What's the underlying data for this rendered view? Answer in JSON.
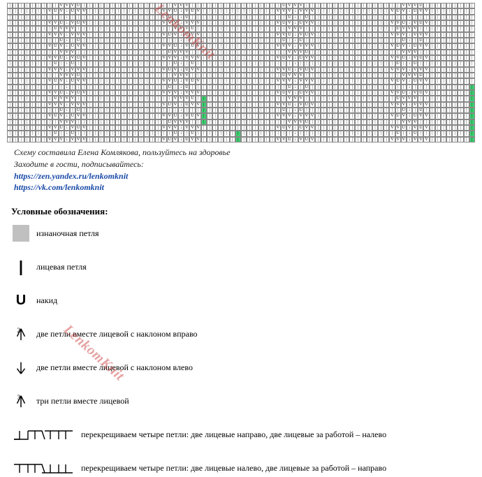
{
  "chart": {
    "rows": 24,
    "cols": 82,
    "symbols": {
      "knit": "|",
      "yo": "U",
      "k2tog_r": "V",
      "k2tog_l": "↓",
      "k3tog": "V",
      "cable_r": "⌐",
      "cable_l": "¬"
    },
    "background_color": "#ffffff",
    "grid_color": "#888888",
    "highlight_color": "#3cd070",
    "cell_font_size": 6,
    "highlight_cells": [
      {
        "row": 16,
        "col": 34,
        "span": 1
      },
      {
        "row": 17,
        "col": 34,
        "span": 1
      },
      {
        "row": 18,
        "col": 34,
        "span": 1
      },
      {
        "row": 19,
        "col": 34,
        "span": 1
      },
      {
        "row": 20,
        "col": 34,
        "span": 1
      },
      {
        "row": 22,
        "col": 40,
        "span": 1
      },
      {
        "row": 23,
        "col": 40,
        "span": 1
      },
      {
        "row": 14,
        "col": 81,
        "span": 1
      },
      {
        "row": 15,
        "col": 81,
        "span": 1
      },
      {
        "row": 16,
        "col": 81,
        "span": 1
      },
      {
        "row": 17,
        "col": 81,
        "span": 1
      },
      {
        "row": 18,
        "col": 81,
        "span": 1
      },
      {
        "row": 19,
        "col": 81,
        "span": 1
      },
      {
        "row": 20,
        "col": 81,
        "span": 1
      },
      {
        "row": 21,
        "col": 81,
        "span": 1
      },
      {
        "row": 22,
        "col": 81,
        "span": 1
      },
      {
        "row": 23,
        "col": 81,
        "span": 1
      }
    ]
  },
  "watermark": "LenkomKnit",
  "credits": {
    "author_line": "Схему составила Елена Комлякова, пользуйтесь на здоровье",
    "visit_line": "Заходите в гости, подписывайтесь:",
    "link1": "https://zen.yandex.ru/lenkomknit",
    "link2": "https://vk.com/lenkomknit",
    "link_color": "#1a4aa8"
  },
  "legend_title": "Условные обозначения:",
  "legend": [
    {
      "key": "purl",
      "label": "изнаночная петля"
    },
    {
      "key": "knit",
      "label": "лицевая петля"
    },
    {
      "key": "yo",
      "label": "накид"
    },
    {
      "key": "k2tog_r",
      "label": "две петли вместе лицевой с наклоном вправо"
    },
    {
      "key": "k2tog_l",
      "label": "две петли вместе лицевой с наклоном влево"
    },
    {
      "key": "k3tog",
      "label": "три петли вместе лицевой"
    },
    {
      "key": "cable_r",
      "label": "перекрещиваем четыре  петли: две лицевые направо, две лицевые за работой – налево"
    },
    {
      "key": "cable_l",
      "label": "перекрещиваем четыре петли: две лицевые налево, две лицевые  за работой – направо"
    }
  ]
}
